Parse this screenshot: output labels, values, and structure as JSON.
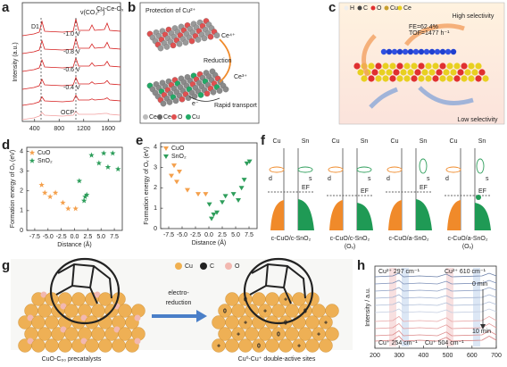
{
  "chart_data": [
    {
      "type": "spectrum",
      "label": "a",
      "title": "Cu-Ce-Oₓ",
      "ylabel": "Intensity (a.u.)",
      "xlim": [
        200,
        1800
      ],
      "xticks": [
        400,
        800,
        1200,
        1600
      ],
      "annotations": [
        "D1",
        "ν(CO₃²⁻)",
        "-1.0 V",
        "-0.8 V",
        "-0.6 V",
        "-0.4 V",
        "OCP"
      ]
    },
    {
      "type": "scatter",
      "label": "d",
      "xlabel": "Distance (Å)",
      "ylabel": "Formation energy of Oᵥ (eV)",
      "xlim": [
        -9,
        9
      ],
      "ylim": [
        0,
        4.2
      ],
      "xticks": [
        -7.5,
        {
          "value": -5,
          "label": "-5.0"
        },
        -2.5,
        {
          "value": 0,
          "label": "0.0"
        },
        2.5,
        {
          "value": 5,
          "label": "5.0"
        },
        7.5
      ],
      "yticks": [
        0,
        1,
        2,
        3,
        4
      ],
      "series": [
        {
          "name": "CuO",
          "color": "#f4a04c",
          "marker": "star",
          "x": [
            -6.2,
            -5.6,
            -4.6,
            -3.6,
            -2.2,
            -1.2,
            0.2
          ],
          "values": [
            2.3,
            1.9,
            1.7,
            1.9,
            1.4,
            1.1,
            1.1
          ]
        },
        {
          "name": "SnO₂",
          "color": "#2e9e5b",
          "marker": "star",
          "x": [
            0.9,
            1.8,
            2.0,
            2.3,
            3.2,
            4.6,
            5.5,
            6.3,
            7.2,
            8.2
          ],
          "values": [
            2.5,
            1.5,
            1.7,
            1.8,
            3.8,
            3.4,
            3.9,
            3.2,
            3.9,
            3.1
          ]
        }
      ]
    },
    {
      "type": "scatter",
      "label": "e",
      "xlabel": "Distance (Å)",
      "ylabel": "Formation energy of Oᵥ (eV)",
      "xlim": [
        -9,
        9
      ],
      "ylim": [
        0,
        4.2
      ],
      "xticks": [
        -7.5,
        {
          "value": -5,
          "label": "-5.0"
        },
        -2.5,
        {
          "value": 0,
          "label": "0.0"
        },
        2.5,
        {
          "value": 5,
          "label": "5.0"
        },
        7.5
      ],
      "yticks": [
        0,
        1,
        2,
        3,
        4
      ],
      "series": [
        {
          "name": "CuO",
          "color": "#f4a04c",
          "marker": "triangle-down",
          "x": [
            -7.0,
            -6.5,
            -6.0,
            -5.5,
            -4.0,
            -2.0,
            -0.6
          ],
          "values": [
            2.6,
            3.1,
            2.3,
            2.8,
            1.9,
            1.7,
            1.7
          ]
        },
        {
          "name": "SnO₂",
          "color": "#2e9e5b",
          "marker": "triangle-down",
          "x": [
            0.1,
            0.5,
            0.9,
            1.5,
            2.5,
            3.1,
            4.6,
            5.5,
            6.1,
            6.6,
            7.1,
            7.6
          ],
          "values": [
            1.2,
            0.5,
            0.7,
            0.8,
            1.3,
            1.6,
            1.7,
            1.4,
            2.0,
            2.4,
            3.2,
            3.3
          ]
        }
      ]
    },
    {
      "type": "spectrum",
      "label": "h",
      "ylabel": "Intensity / a.u.",
      "xlim": [
        200,
        700
      ],
      "xticks": [
        200,
        300,
        400,
        500,
        600,
        700
      ],
      "annotations": [
        "Cu²⁺ 297 cm⁻¹",
        "Cu²⁺ 610 cm⁻¹",
        "Cu⁺ 254 cm⁻¹",
        "Cu⁺ 504 cm⁻¹",
        "0 min",
        "10 min"
      ]
    }
  ],
  "figure": {
    "b": {
      "label": "b",
      "title": "Protection of Cu²⁺",
      "labels": [
        "Ce⁴⁺",
        "Reduction",
        "Ce³⁺",
        "e⁻",
        "Rapid transport"
      ],
      "legend": [
        "Ce",
        "Ce",
        "O",
        "Cu"
      ]
    },
    "c": {
      "label": "c",
      "labels": [
        "FE=62.4%",
        "TOF=1477 h⁻¹",
        "High selectivity",
        "Low selectivity"
      ],
      "legend": [
        "H",
        "C",
        "O",
        "Cu",
        "Ce"
      ]
    },
    "f": {
      "label": "f",
      "columns": [
        "Cu",
        "Sn"
      ],
      "levels": [
        "d",
        "s",
        "EF"
      ],
      "captions": [
        "c-CuO/c-SnO₂",
        "c-CuO/c-SnO₂",
        "c-CuO/a-SnO₂",
        "c-CuO/a-SnO₂"
      ],
      "vacancy": "(Oᵥ)"
    },
    "g": {
      "label": "g",
      "legend": [
        "Cu",
        "C",
        "O"
      ],
      "arrow": [
        "electro-",
        "reduction"
      ],
      "captions": [
        "CuO-C₆₀ precatalysts",
        "Cu⁰-Cu⁺ double-active sites"
      ],
      "sites": [
        "+",
        "0"
      ]
    }
  }
}
